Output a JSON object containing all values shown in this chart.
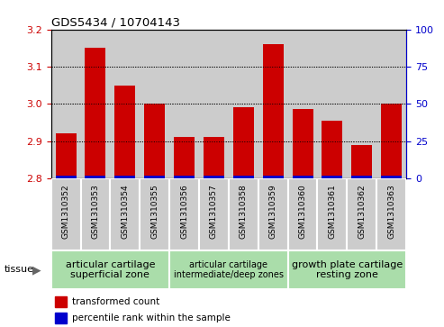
{
  "title": "GDS5434 / 10704143",
  "samples": [
    "GSM1310352",
    "GSM1310353",
    "GSM1310354",
    "GSM1310355",
    "GSM1310356",
    "GSM1310357",
    "GSM1310358",
    "GSM1310359",
    "GSM1310360",
    "GSM1310361",
    "GSM1310362",
    "GSM1310363"
  ],
  "red_values": [
    2.92,
    3.15,
    3.05,
    3.0,
    2.91,
    2.91,
    2.99,
    3.16,
    2.985,
    2.955,
    2.89,
    3.0
  ],
  "ylim_left": [
    2.8,
    3.2
  ],
  "ylim_right": [
    0,
    100
  ],
  "yticks_left": [
    2.8,
    2.9,
    3.0,
    3.1,
    3.2
  ],
  "yticks_right": [
    0,
    25,
    50,
    75,
    100
  ],
  "groups": [
    {
      "label": "articular cartilage\nsuperficial zone",
      "start": 0,
      "end": 3,
      "color": "#aaddaa",
      "fontsize": 8
    },
    {
      "label": "articular cartilage\nintermediate/deep zones",
      "start": 4,
      "end": 7,
      "color": "#aaddaa",
      "fontsize": 7
    },
    {
      "label": "growth plate cartilage\nresting zone",
      "start": 8,
      "end": 11,
      "color": "#aaddaa",
      "fontsize": 8
    }
  ],
  "bar_color": "#cc0000",
  "blue_bar_color": "#0000cc",
  "col_bg_color": "#cccccc",
  "base_value": 2.8
}
